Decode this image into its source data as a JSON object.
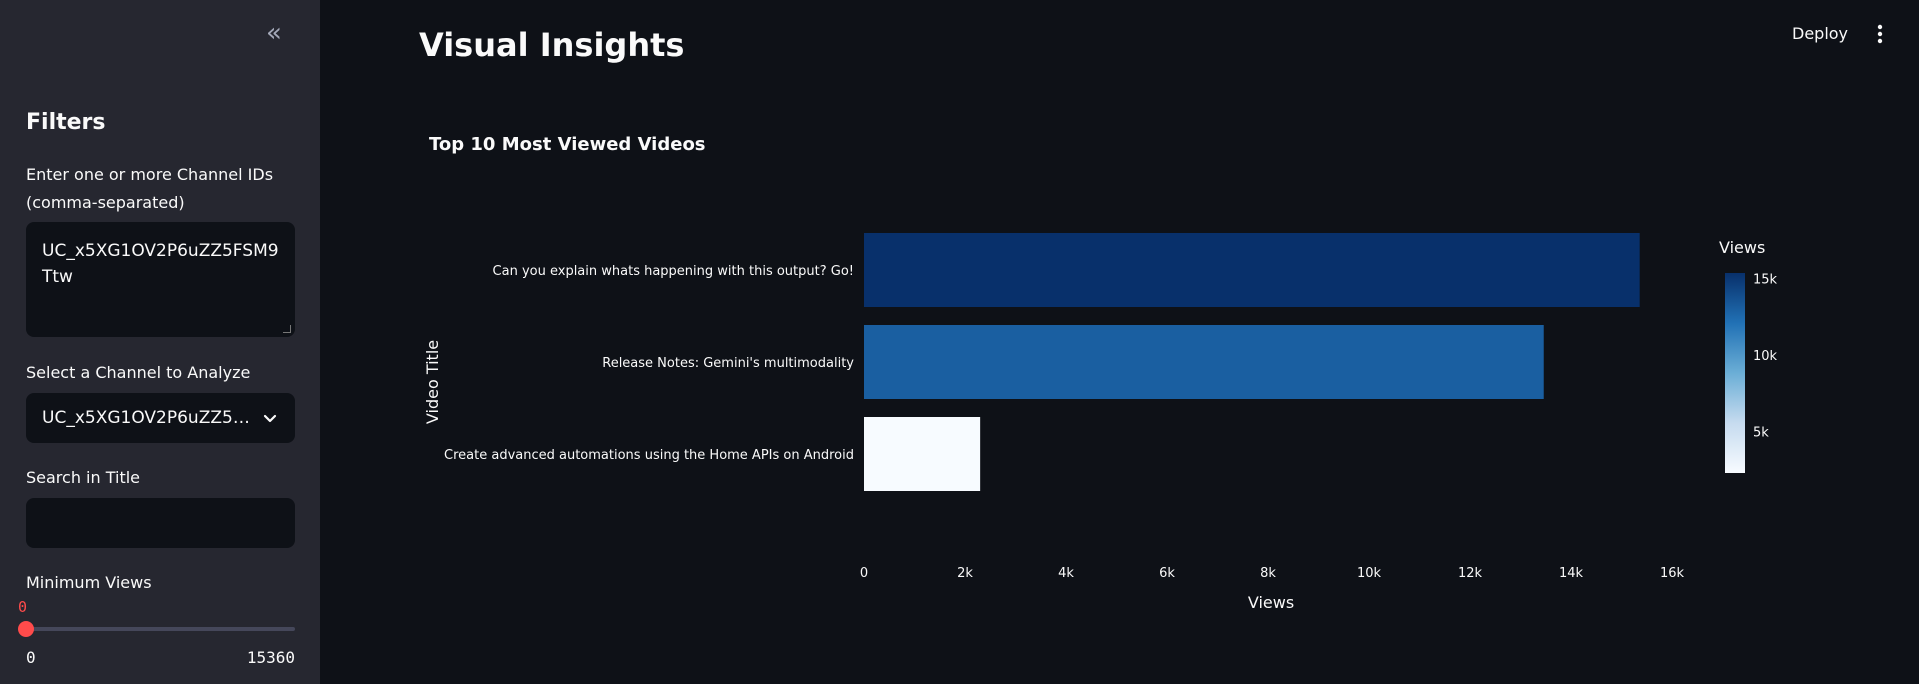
{
  "sidebar": {
    "collapse_icon": "chevrons-left-icon",
    "title": "Filters",
    "channel_ids_label": "Enter one or more Channel IDs (comma-separated)",
    "channel_ids_value": "UC_x5XG1OV2P6uZZ5FSM9Ttw",
    "select_label": "Select a Channel to Analyze",
    "select_value": "UC_x5XG1OV2P6uZZ5FSM9Ttw",
    "search_label": "Search in Title",
    "search_value": "",
    "min_views_label": "Minimum Views",
    "min_views_value": "0",
    "min_views_min": "0",
    "min_views_max": "15360"
  },
  "header": {
    "deploy_label": "Deploy",
    "menu_icon": "kebab-menu-icon"
  },
  "main": {
    "title": "Visual Insights"
  },
  "chart_data": {
    "type": "bar",
    "orientation": "horizontal",
    "title": "Top 10 Most Viewed Videos",
    "xlabel": "Views",
    "ylabel": "Video Title",
    "categories": [
      "Can you explain whats happening with this output? Go!",
      "Release Notes: Gemini's multimodality",
      "Create advanced automations using the Home APIs on Android"
    ],
    "values": [
      15360,
      13460,
      2300
    ],
    "xlim": [
      0,
      16000
    ],
    "xticks": [
      0,
      2000,
      4000,
      6000,
      8000,
      10000,
      12000,
      14000,
      16000
    ],
    "xtick_labels": [
      "0",
      "2k",
      "4k",
      "6k",
      "8k",
      "10k",
      "12k",
      "14k",
      "16k"
    ],
    "grid": false,
    "colorbar": {
      "title": "Views",
      "range": [
        2300,
        15360
      ],
      "ticks": [
        5000,
        10000,
        15000
      ],
      "tick_labels": [
        "5k",
        "10k",
        "15k"
      ],
      "color_low": "#f7fbff",
      "color_high": "#08306b"
    }
  }
}
